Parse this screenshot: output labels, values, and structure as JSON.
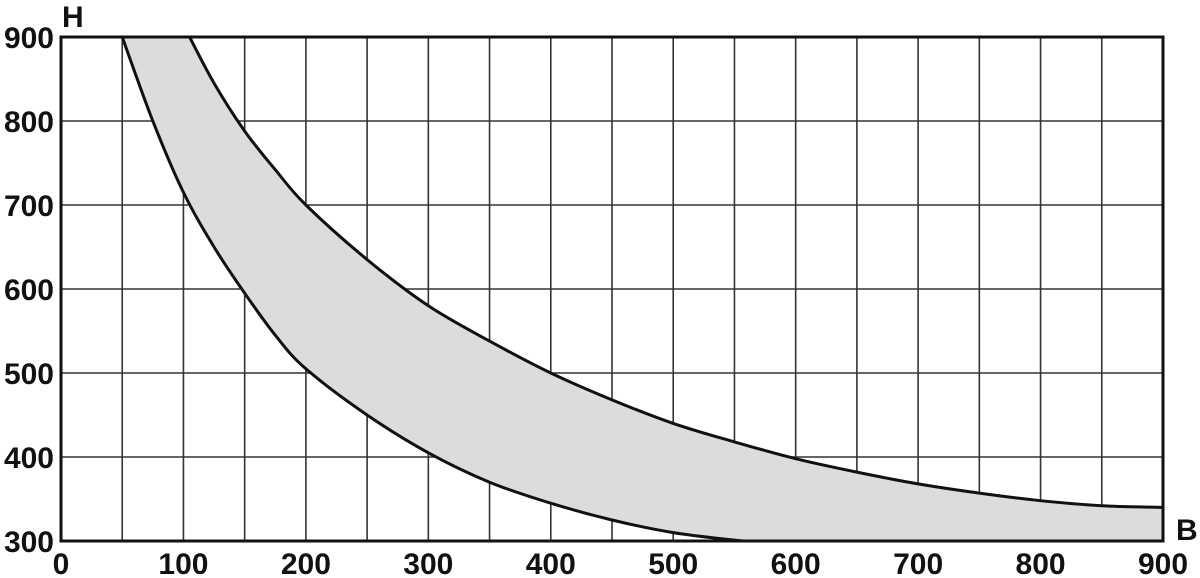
{
  "chart_data": {
    "type": "area",
    "xlabel": "B",
    "ylabel": "H",
    "xlim": [
      0,
      900
    ],
    "ylim": [
      300,
      900
    ],
    "x_ticks": [
      0,
      100,
      200,
      300,
      400,
      500,
      600,
      700,
      800,
      900
    ],
    "y_ticks": [
      300,
      400,
      500,
      600,
      700,
      800,
      900
    ],
    "x_grid_step": 50,
    "y_grid_step": 100,
    "grid": true,
    "fill_color": "#dcdcdf",
    "line_color": "#111111",
    "series": [
      {
        "x": [
          50,
          75,
          100,
          125,
          150,
          175,
          200,
          250,
          300,
          350,
          400,
          450,
          500,
          550,
          560
        ],
        "y": [
          900,
          800,
          715,
          650,
          595,
          545,
          505,
          450,
          405,
          370,
          345,
          325,
          310,
          301,
          300
        ]
      },
      {
        "x": [
          105,
          125,
          150,
          175,
          200,
          250,
          300,
          350,
          400,
          450,
          500,
          550,
          600,
          650,
          700,
          750,
          800,
          850,
          900
        ],
        "y": [
          900,
          845,
          788,
          742,
          700,
          635,
          580,
          538,
          500,
          468,
          440,
          418,
          398,
          382,
          368,
          357,
          348,
          342,
          340
        ]
      }
    ]
  }
}
